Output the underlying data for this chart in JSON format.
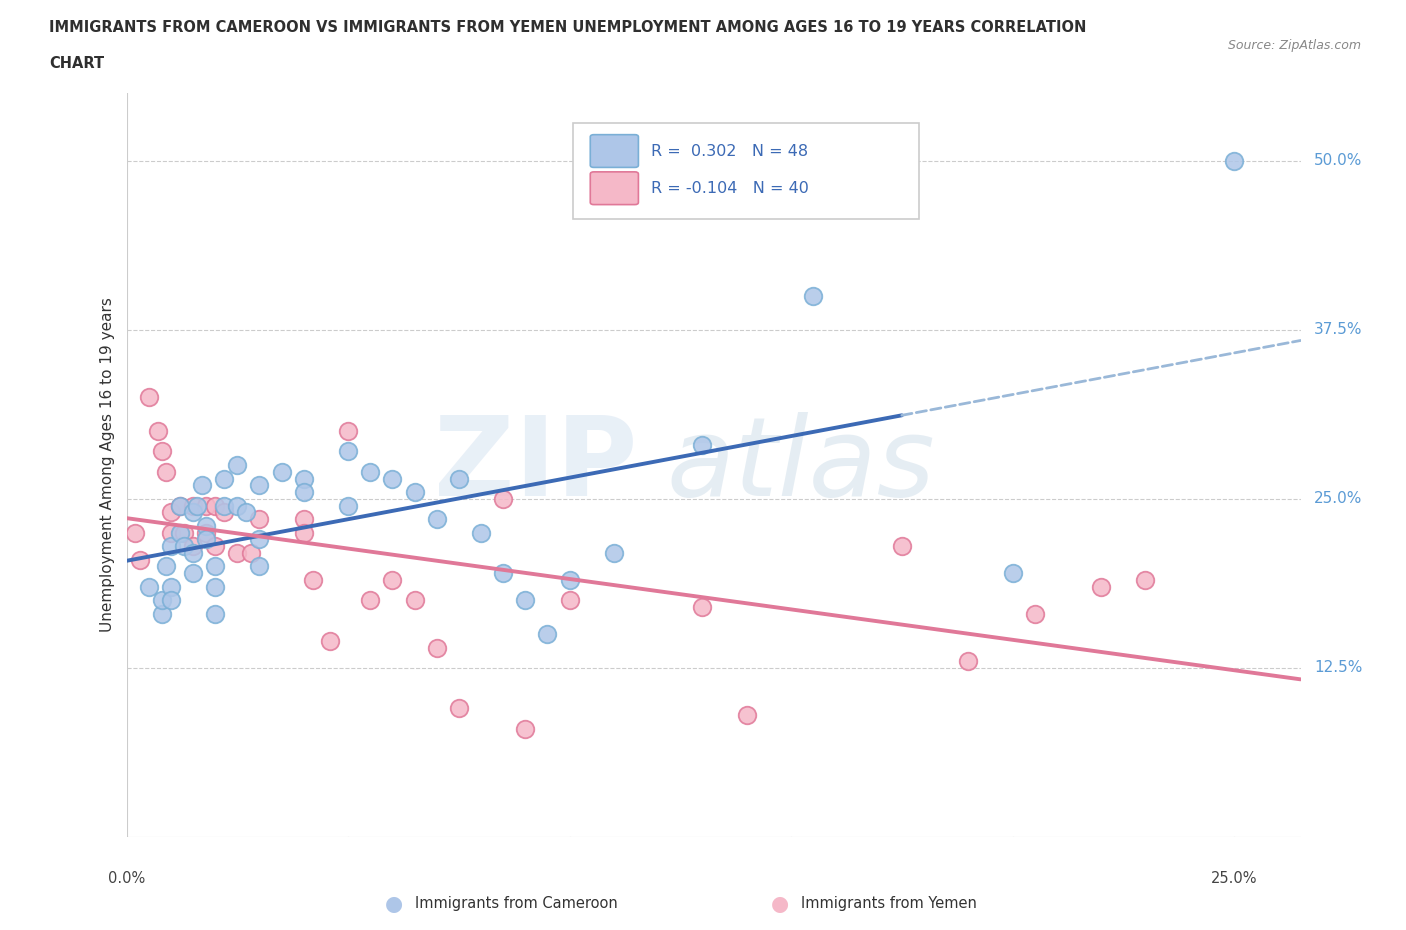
{
  "title_line1": "IMMIGRANTS FROM CAMEROON VS IMMIGRANTS FROM YEMEN UNEMPLOYMENT AMONG AGES 16 TO 19 YEARS CORRELATION",
  "title_line2": "CHART",
  "source": "Source: ZipAtlas.com",
  "ylabel": "Unemployment Among Ages 16 to 19 years",
  "xlim": [
    0.0,
    0.265
  ],
  "ylim": [
    0.0,
    0.55
  ],
  "cameroon_color_fill": "#aec6e8",
  "cameroon_color_edge": "#7aafd6",
  "yemen_color_fill": "#f5b8c8",
  "yemen_color_edge": "#e07898",
  "blue_line_color": "#3c6ab5",
  "pink_line_color": "#e07898",
  "gray_dash_color": "#9ab8d8",
  "cameroon_x": [
    0.005,
    0.008,
    0.008,
    0.009,
    0.01,
    0.01,
    0.01,
    0.012,
    0.012,
    0.013,
    0.015,
    0.015,
    0.015,
    0.016,
    0.017,
    0.018,
    0.018,
    0.02,
    0.02,
    0.02,
    0.022,
    0.022,
    0.025,
    0.025,
    0.027,
    0.03,
    0.03,
    0.03,
    0.035,
    0.04,
    0.04,
    0.05,
    0.05,
    0.055,
    0.06,
    0.065,
    0.07,
    0.075,
    0.08,
    0.085,
    0.09,
    0.095,
    0.1,
    0.11,
    0.13,
    0.155,
    0.2,
    0.25
  ],
  "cameroon_y": [
    0.185,
    0.165,
    0.175,
    0.2,
    0.215,
    0.185,
    0.175,
    0.225,
    0.245,
    0.215,
    0.195,
    0.24,
    0.21,
    0.245,
    0.26,
    0.23,
    0.22,
    0.2,
    0.185,
    0.165,
    0.245,
    0.265,
    0.245,
    0.275,
    0.24,
    0.26,
    0.22,
    0.2,
    0.27,
    0.265,
    0.255,
    0.285,
    0.245,
    0.27,
    0.265,
    0.255,
    0.235,
    0.265,
    0.225,
    0.195,
    0.175,
    0.15,
    0.19,
    0.21,
    0.29,
    0.4,
    0.195,
    0.5
  ],
  "yemen_x": [
    0.002,
    0.003,
    0.005,
    0.007,
    0.008,
    0.009,
    0.01,
    0.01,
    0.012,
    0.013,
    0.015,
    0.015,
    0.018,
    0.018,
    0.02,
    0.02,
    0.022,
    0.025,
    0.028,
    0.03,
    0.04,
    0.04,
    0.042,
    0.046,
    0.05,
    0.055,
    0.06,
    0.065,
    0.07,
    0.075,
    0.085,
    0.09,
    0.1,
    0.13,
    0.14,
    0.175,
    0.19,
    0.205,
    0.22,
    0.23
  ],
  "yemen_y": [
    0.225,
    0.205,
    0.325,
    0.3,
    0.285,
    0.27,
    0.24,
    0.225,
    0.245,
    0.225,
    0.245,
    0.215,
    0.245,
    0.225,
    0.245,
    0.215,
    0.24,
    0.21,
    0.21,
    0.235,
    0.235,
    0.225,
    0.19,
    0.145,
    0.3,
    0.175,
    0.19,
    0.175,
    0.14,
    0.095,
    0.25,
    0.08,
    0.175,
    0.17,
    0.09,
    0.215,
    0.13,
    0.165,
    0.185,
    0.19
  ],
  "blue_trend_start_x": 0.0,
  "blue_trend_end_solid_x": 0.175,
  "blue_trend_end_dash_x": 0.265,
  "pink_trend_start_x": 0.0,
  "pink_trend_end_x": 0.265,
  "blue_intercept": 0.195,
  "blue_slope": 0.75,
  "pink_intercept": 0.215,
  "pink_slope": -0.22
}
